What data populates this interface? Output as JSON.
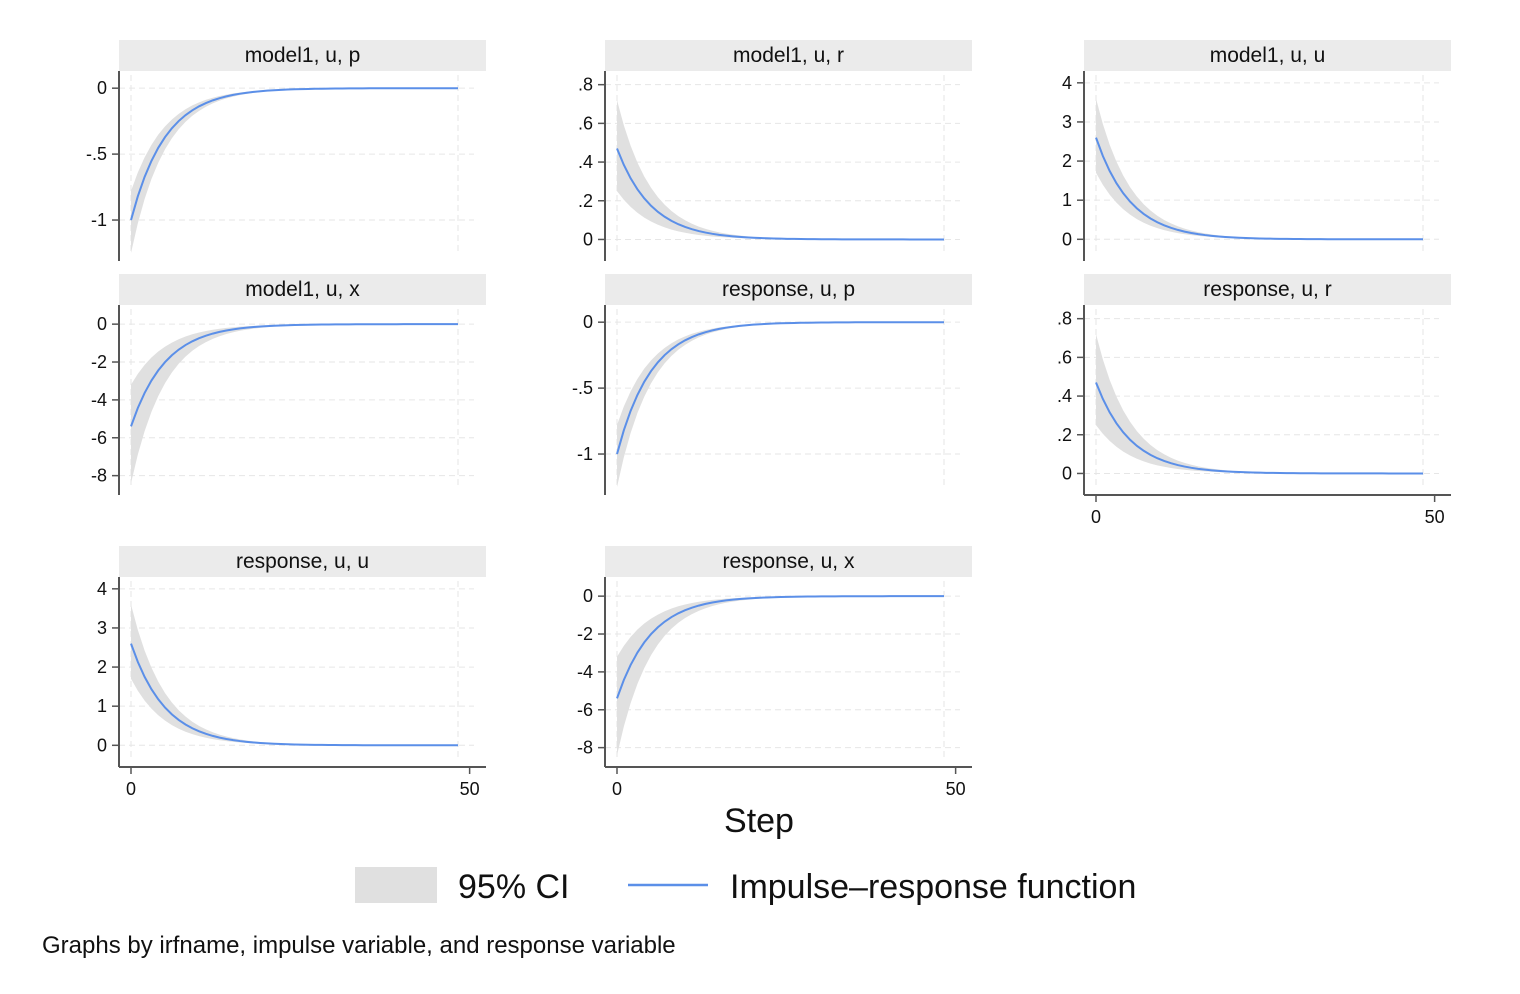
{
  "chart_data": {
    "type": "line",
    "layout": "small-multiples",
    "xlabel": "Step",
    "xlim": [
      0,
      48
    ],
    "xticks": [
      0,
      50
    ],
    "grid": true,
    "colors": {
      "ci": "#e0e0e0",
      "irf": "#5b8fe8",
      "strip": "#ebebeb",
      "grid": "#e6e6e6",
      "axis": "#555555"
    },
    "legend": {
      "position": "bottom",
      "entries": [
        {
          "label": "95% CI",
          "kind": "band"
        },
        {
          "label": "Impulse–response function",
          "kind": "line"
        }
      ]
    },
    "note": "Graphs by irfname, impulse variable, and response variable",
    "panels": [
      {
        "title": "model1, u, p",
        "ylim": [
          -1.25,
          0.1
        ],
        "yticks": [
          0,
          -0.5,
          -1
        ],
        "ytick_labels": [
          "0",
          "-.5",
          "-1"
        ],
        "irf_start": -1.0,
        "ci_low_start": -1.25,
        "ci_high_start": -0.78,
        "decay": 0.82,
        "show_x": false
      },
      {
        "title": "model1, u, r",
        "ylim": [
          -0.07,
          0.85
        ],
        "yticks": [
          0.8,
          0.6,
          0.4,
          0.2,
          0
        ],
        "ytick_labels": [
          ".8",
          ".6",
          ".4",
          ".2",
          "0"
        ],
        "irf_start": 0.47,
        "ci_low_start": 0.25,
        "ci_high_start": 0.72,
        "decay": 0.82,
        "show_x": false
      },
      {
        "title": "model1, u, u",
        "ylim": [
          -0.35,
          4.2
        ],
        "yticks": [
          4,
          3,
          2,
          1,
          0
        ],
        "ytick_labels": [
          "4",
          "3",
          "2",
          "1",
          "0"
        ],
        "irf_start": 2.6,
        "ci_low_start": 1.7,
        "ci_high_start": 3.6,
        "decay": 0.82,
        "show_x": false
      },
      {
        "title": "model1, u, x",
        "ylim": [
          -8.6,
          0.8
        ],
        "yticks": [
          0,
          -2,
          -4,
          -6,
          -8
        ],
        "ytick_labels": [
          "0",
          "-2",
          "-4",
          "-6",
          "-8"
        ],
        "irf_start": -5.4,
        "ci_low_start": -8.4,
        "ci_high_start": -3.2,
        "decay": 0.82,
        "show_x": false
      },
      {
        "title": "response, u, p",
        "ylim": [
          -1.25,
          0.1
        ],
        "yticks": [
          0,
          -0.5,
          -1
        ],
        "ytick_labels": [
          "0",
          "-.5",
          "-1"
        ],
        "irf_start": -1.0,
        "ci_low_start": -1.25,
        "ci_high_start": -0.78,
        "decay": 0.82,
        "show_x": false
      },
      {
        "title": "response, u, r",
        "ylim": [
          -0.07,
          0.85
        ],
        "yticks": [
          0.8,
          0.6,
          0.4,
          0.2,
          0
        ],
        "ytick_labels": [
          ".8",
          ".6",
          ".4",
          ".2",
          "0"
        ],
        "irf_start": 0.47,
        "ci_low_start": 0.25,
        "ci_high_start": 0.72,
        "decay": 0.82,
        "show_x": true
      },
      {
        "title": "response, u, u",
        "ylim": [
          -0.35,
          4.2
        ],
        "yticks": [
          4,
          3,
          2,
          1,
          0
        ],
        "ytick_labels": [
          "4",
          "3",
          "2",
          "1",
          "0"
        ],
        "irf_start": 2.6,
        "ci_low_start": 1.7,
        "ci_high_start": 3.6,
        "decay": 0.82,
        "show_x": true
      },
      {
        "title": "response, u, x",
        "ylim": [
          -8.6,
          0.8
        ],
        "yticks": [
          0,
          -2,
          -4,
          -6,
          -8
        ],
        "ytick_labels": [
          "0",
          "-2",
          "-4",
          "-6",
          "-8"
        ],
        "irf_start": -5.4,
        "ci_low_start": -8.4,
        "ci_high_start": -3.2,
        "decay": 0.82,
        "show_x": true
      }
    ]
  }
}
